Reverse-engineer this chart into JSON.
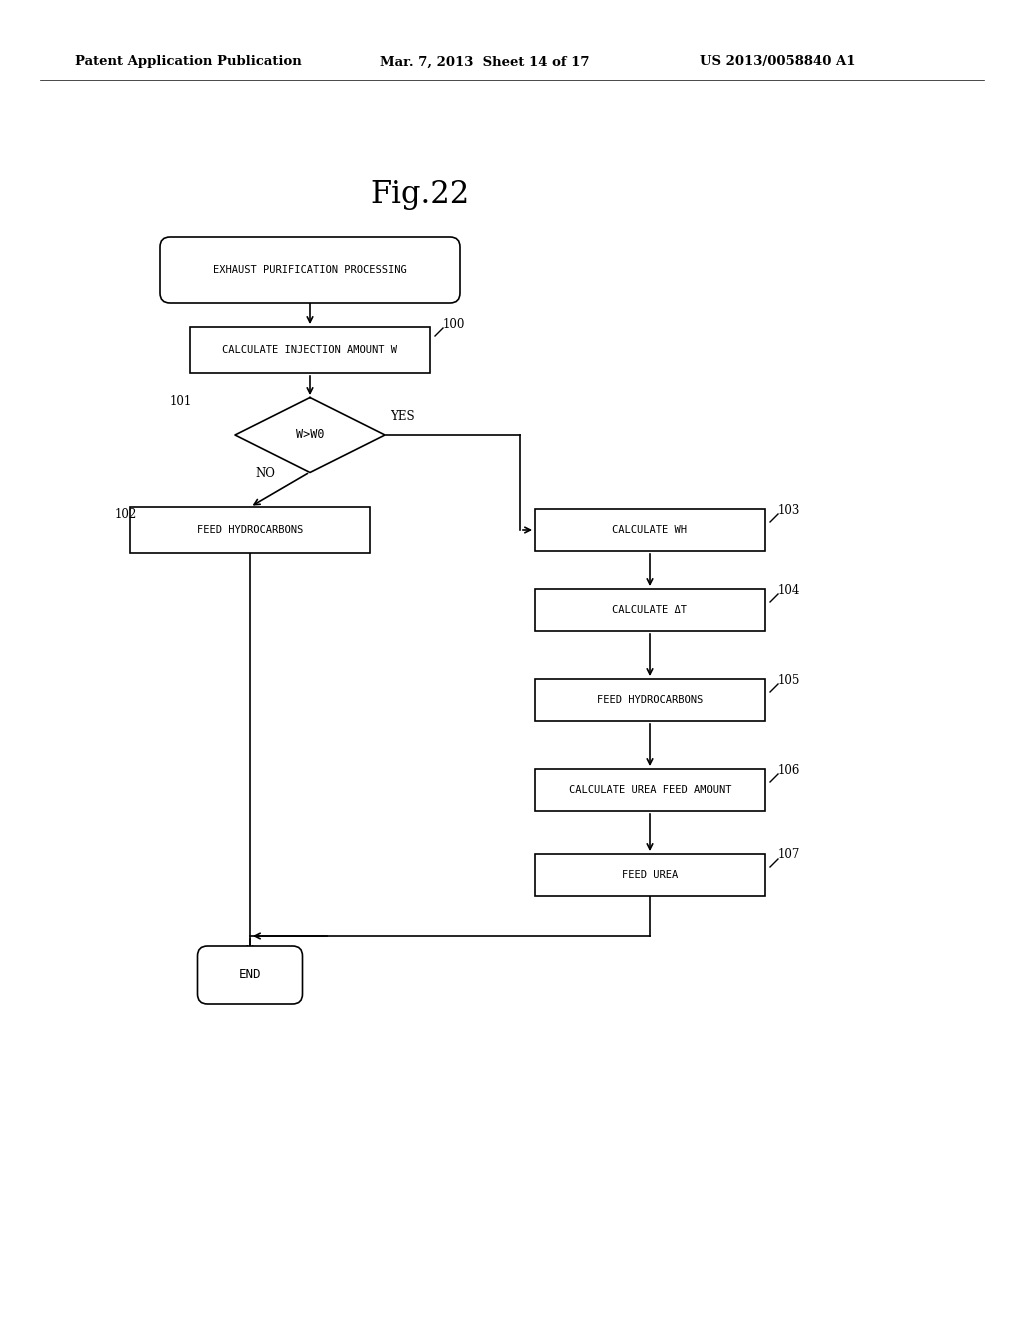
{
  "fig_title": "Fig.22",
  "header_left": "Patent Application Publication",
  "header_mid": "Mar. 7, 2013  Sheet 14 of 17",
  "header_right": "US 2013/0058840 A1",
  "background_color": "#ffffff",
  "start_label": "EXHAUST PURIFICATION PROCESSING",
  "n100_label": "CALCULATE INJECTION AMOUNT W",
  "n101_label": "W>W0",
  "n102_label": "FEED HYDROCARBONS",
  "n103_label": "CALCULATE WH",
  "n104_label": "CALCULATE ΔT",
  "n105_label": "FEED HYDROCARBONS",
  "n106_label": "CALCULATE UREA FEED AMOUNT",
  "n107_label": "FEED UREA",
  "end_label": "END",
  "yes_label": "YES",
  "no_label": "NO",
  "ref100": "100",
  "ref101": "101",
  "ref102": "102",
  "ref103": "103",
  "ref104": "104",
  "ref105": "105",
  "ref106": "106",
  "ref107": "107"
}
